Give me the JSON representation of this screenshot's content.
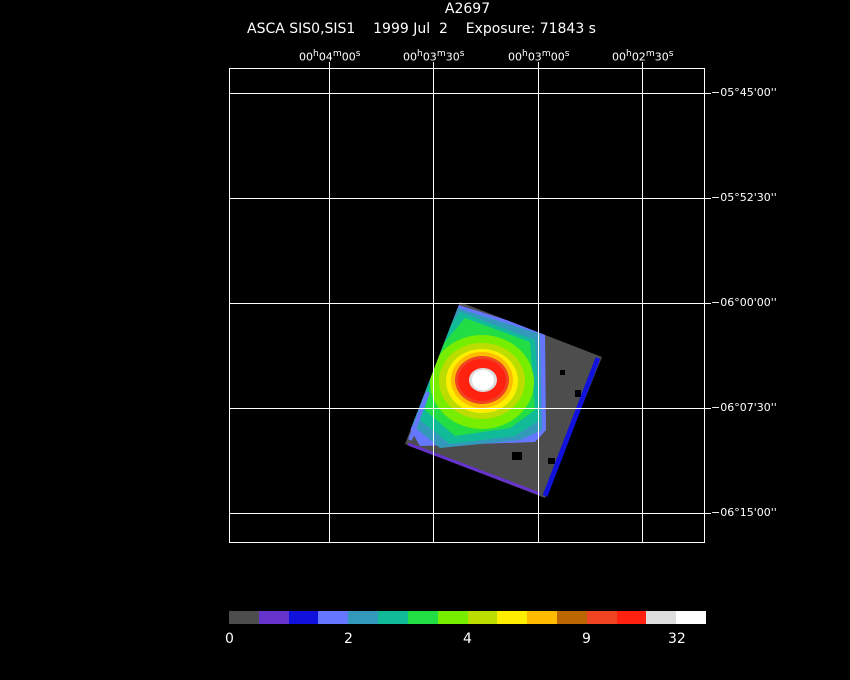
{
  "title": "A2697",
  "subtitle": "ASCA SIS0,SIS1    1999 Jul  2    Exposure: 71843 s",
  "ra_ticks": [
    {
      "h": "00",
      "m": "04",
      "s": "00"
    },
    {
      "h": "00",
      "m": "03",
      "s": "30"
    },
    {
      "h": "00",
      "m": "03",
      "s": "00"
    },
    {
      "h": "00",
      "m": "02",
      "s": "30"
    }
  ],
  "dec_ticks": [
    "−05°45'00''",
    "−05°52'30''",
    "−06°00'00''",
    "−06°07'30''",
    "−06°15'00''"
  ],
  "colorbar": {
    "colors": [
      "#4d4d4d",
      "#6633cc",
      "#1111dd",
      "#6677ff",
      "#3399bb",
      "#11bb99",
      "#22dd44",
      "#77ee00",
      "#bbdd00",
      "#ffee00",
      "#ffbb00",
      "#bb6600",
      "#ee4422",
      "#ff2211",
      "#dddddd",
      "#ffffff"
    ],
    "labels": [
      "0",
      "2",
      "4",
      "9",
      "32"
    ]
  }
}
